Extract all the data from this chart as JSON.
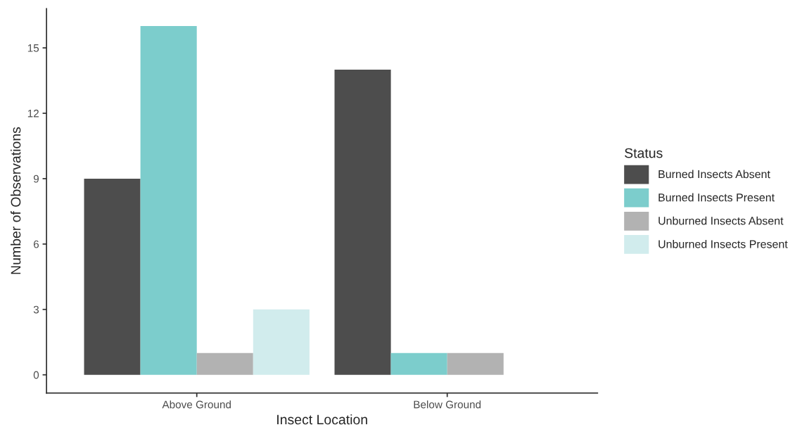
{
  "chart_data": {
    "type": "bar",
    "xlabel": "Insect Location",
    "ylabel": "Number of Observations",
    "legend_title": "Status",
    "categories": [
      "Above Ground",
      "Below Ground"
    ],
    "series": [
      {
        "name": "Burned Insects Absent",
        "color": "#4d4d4d",
        "values": [
          9,
          14
        ]
      },
      {
        "name": "Burned Insects Present",
        "color": "#7ccdcc",
        "values": [
          16,
          1
        ]
      },
      {
        "name": "Unburned Insects Absent",
        "color": "#b2b2b2",
        "values": [
          1,
          1
        ]
      },
      {
        "name": "Unburned Insects Present",
        "color": "#d1eced",
        "values": [
          3,
          null
        ]
      }
    ],
    "ylim": [
      -0.84,
      16.8
    ],
    "yticks": [
      0,
      3,
      6,
      9,
      12,
      15
    ],
    "grid": false,
    "legend": "right"
  }
}
